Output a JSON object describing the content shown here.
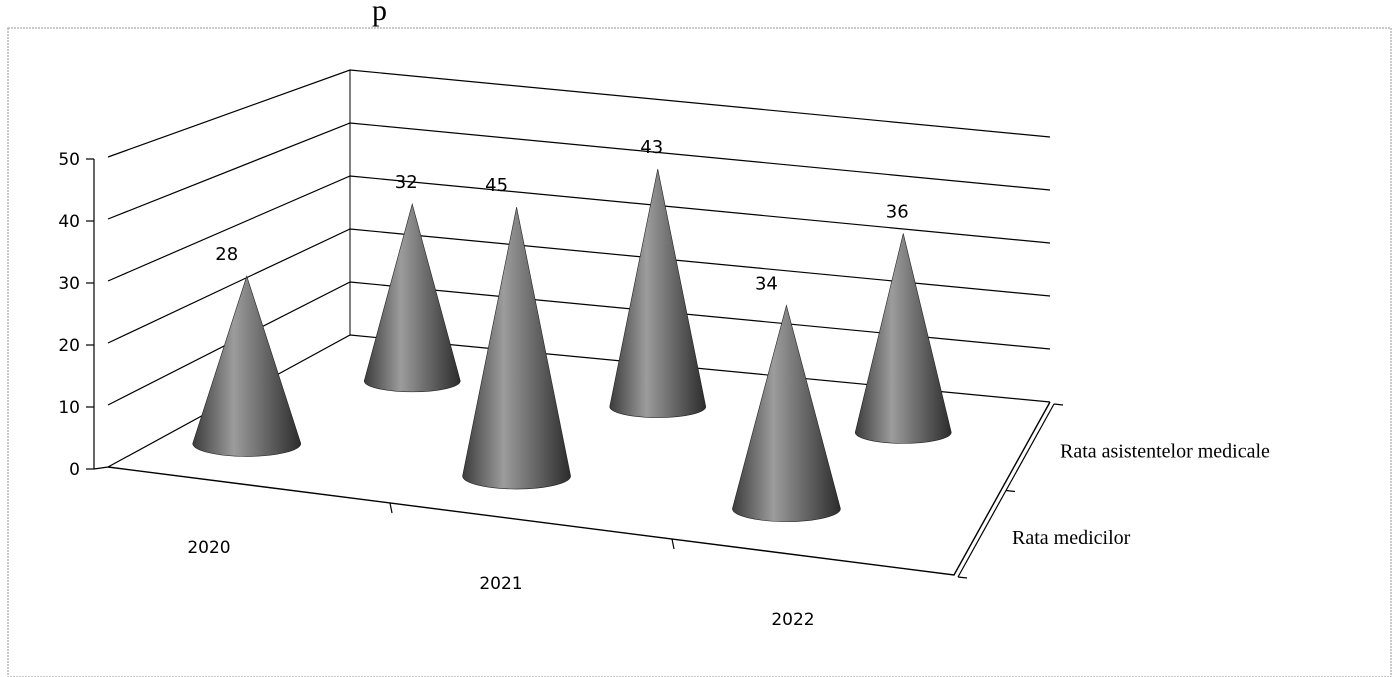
{
  "header": {
    "caption_fragment": "p"
  },
  "chart_data": {
    "type": "bar",
    "subtype": "3d-cone",
    "title": "",
    "categories": [
      "2020",
      "2021",
      "2022"
    ],
    "series": [
      {
        "name": "Rata medicilor",
        "values": [
          28,
          45,
          34
        ]
      },
      {
        "name": "Rata asistentelor medicale",
        "values": [
          32,
          43,
          36
        ]
      }
    ],
    "ylim": [
      0,
      50
    ],
    "yticks": [
      "0",
      "10",
      "20",
      "30",
      "40",
      "50"
    ],
    "grid": true,
    "colors": {
      "cone": "#6e6e6e",
      "gridline": "#000000",
      "frame": "#b0b0b0"
    }
  }
}
